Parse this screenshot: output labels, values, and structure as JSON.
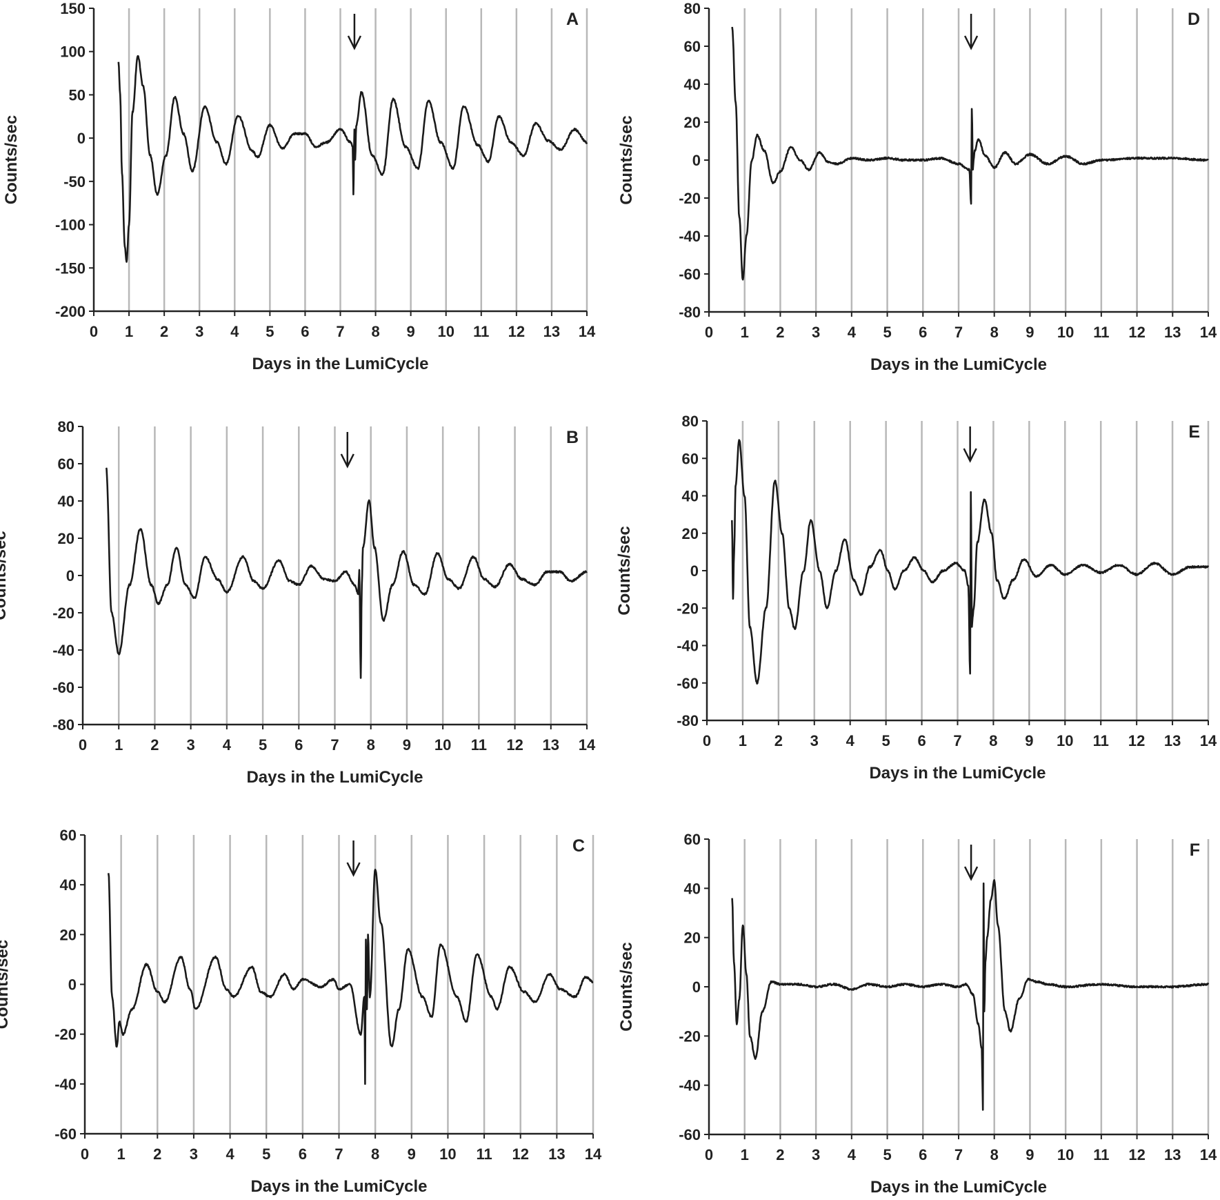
{
  "chart_data": [
    {
      "panel": "A",
      "type": "line",
      "xlabel": "Days in the LumiCycle",
      "ylabel": "Counts/sec",
      "xlim": [
        0,
        14
      ],
      "ylim": [
        -200,
        150
      ],
      "xticks": [
        "0",
        "1",
        "2",
        "3",
        "4",
        "5",
        "6",
        "7",
        "8",
        "9",
        "10",
        "11",
        "12",
        "13",
        "14"
      ],
      "yticks": [
        "-200",
        "-150",
        "-100",
        "-50",
        "0",
        "50",
        "100",
        "150"
      ],
      "vgrid_days": [
        1,
        2,
        3,
        4,
        5,
        6,
        7,
        8,
        9,
        10,
        11,
        12,
        13,
        14
      ],
      "arrow_day": 7.4,
      "series": [
        {
          "x": [
            0.7,
            0.75,
            0.8,
            0.88,
            0.93,
            1.0,
            1.1,
            1.25,
            1.4,
            1.6,
            1.8,
            2.05,
            2.3,
            2.55,
            2.8,
            3.15,
            3.5,
            3.75,
            4.1,
            4.5,
            4.65,
            5.0,
            5.35,
            5.7,
            6.0,
            6.3,
            6.6,
            7.0,
            7.3,
            7.35,
            7.37,
            7.4,
            7.42,
            7.45,
            7.6,
            7.9,
            8.2,
            8.5,
            8.85,
            9.2,
            9.5,
            9.85,
            10.2,
            10.5,
            10.9,
            11.2,
            11.5,
            11.85,
            12.2,
            12.55,
            12.9,
            13.25,
            13.65,
            14.0
          ],
          "y": [
            88,
            50,
            -40,
            -125,
            -143,
            -100,
            30,
            95,
            60,
            -20,
            -65,
            -20,
            47,
            5,
            -38,
            36,
            -5,
            -30,
            26,
            -15,
            -22,
            15,
            -12,
            5,
            5,
            -10,
            -5,
            10,
            -5,
            -10,
            -65,
            10,
            -25,
            15,
            53,
            -20,
            -42,
            45,
            -10,
            -35,
            43,
            -5,
            -35,
            37,
            -8,
            -27,
            25,
            -5,
            -20,
            17,
            -3,
            -13,
            10,
            -5
          ]
        }
      ]
    },
    {
      "panel": "B",
      "type": "line",
      "xlabel": "Days in the LumiCycle",
      "ylabel": "Counts/sec",
      "xlim": [
        0,
        14
      ],
      "ylim": [
        -80,
        80
      ],
      "xticks": [
        "0",
        "1",
        "2",
        "3",
        "4",
        "5",
        "6",
        "7",
        "8",
        "9",
        "10",
        "11",
        "12",
        "13",
        "14"
      ],
      "yticks": [
        "-80",
        "-60",
        "-40",
        "-20",
        "0",
        "20",
        "40",
        "60",
        "80"
      ],
      "vgrid_days": [
        1,
        2,
        3,
        4,
        5,
        6,
        7,
        8,
        9,
        10,
        11,
        12,
        13,
        14
      ],
      "arrow_day": 7.35,
      "series": [
        {
          "x": [
            0.65,
            0.8,
            1.0,
            1.3,
            1.6,
            1.9,
            2.1,
            2.35,
            2.6,
            2.85,
            3.1,
            3.4,
            3.75,
            4.0,
            4.45,
            4.75,
            5.0,
            5.45,
            5.75,
            6.0,
            6.35,
            6.7,
            7.0,
            7.3,
            7.55,
            7.65,
            7.68,
            7.72,
            7.75,
            7.78,
            7.95,
            8.1,
            8.35,
            8.6,
            8.9,
            9.2,
            9.5,
            9.85,
            10.15,
            10.45,
            10.85,
            11.15,
            11.45,
            11.85,
            12.2,
            12.55,
            12.9,
            13.25,
            13.55,
            14.0
          ],
          "y": [
            58,
            -20,
            -42,
            -5,
            25,
            -5,
            -15,
            -5,
            15,
            -5,
            -12,
            10,
            -2,
            -9,
            10,
            -3,
            -7,
            8,
            -3,
            -5,
            5,
            -2,
            -3,
            2,
            -5,
            -10,
            3,
            -55,
            -5,
            15,
            40,
            15,
            -24,
            -5,
            13,
            -5,
            -10,
            12,
            -2,
            -7,
            10,
            -2,
            -6,
            6,
            -2,
            -5,
            2,
            2,
            -3,
            2
          ]
        }
      ]
    },
    {
      "panel": "C",
      "type": "line",
      "xlabel": "Days in the LumiCycle",
      "ylabel": "Counts/sec",
      "xlim": [
        0,
        14
      ],
      "ylim": [
        -60,
        60
      ],
      "xticks": [
        "0",
        "1",
        "2",
        "3",
        "4",
        "5",
        "6",
        "7",
        "8",
        "9",
        "10",
        "11",
        "12",
        "13",
        "14"
      ],
      "yticks": [
        "-60",
        "-40",
        "-20",
        "0",
        "20",
        "40",
        "60"
      ],
      "vgrid_days": [
        1,
        2,
        3,
        4,
        5,
        6,
        7,
        8,
        9,
        10,
        11,
        12,
        13,
        14
      ],
      "arrow_day": 7.4,
      "series": [
        {
          "x": [
            0.65,
            0.75,
            0.88,
            0.95,
            1.05,
            1.3,
            1.7,
            2.0,
            2.2,
            2.65,
            2.9,
            3.05,
            3.6,
            3.9,
            4.1,
            4.6,
            4.85,
            5.1,
            5.5,
            5.75,
            6.0,
            6.5,
            6.85,
            7.0,
            7.3,
            7.6,
            7.7,
            7.72,
            7.74,
            7.77,
            7.8,
            7.85,
            8.0,
            8.15,
            8.45,
            8.65,
            8.9,
            9.3,
            9.55,
            9.8,
            10.25,
            10.5,
            10.8,
            11.2,
            11.35,
            11.7,
            12.1,
            12.4,
            12.8,
            13.1,
            13.5,
            13.8,
            14.0
          ],
          "y": [
            45,
            -5,
            -25,
            -15,
            -20,
            -10,
            8,
            -3,
            -7,
            11,
            -2,
            -10,
            11,
            -2,
            -5,
            7,
            -3,
            -5,
            4,
            -2,
            2,
            -1,
            2,
            -2,
            0,
            -20,
            -5,
            -40,
            18,
            -10,
            20,
            -5,
            46,
            25,
            -25,
            -10,
            14,
            -5,
            -13,
            16,
            -5,
            -15,
            12,
            -5,
            -10,
            7,
            -3,
            -7,
            4,
            -2,
            -5,
            3,
            1
          ]
        }
      ]
    },
    {
      "panel": "D",
      "type": "line",
      "xlabel": "Days in the LumiCycle",
      "ylabel": "Counts/sec",
      "xlim": [
        0,
        14
      ],
      "ylim": [
        -80,
        80
      ],
      "xticks": [
        "0",
        "1",
        "2",
        "3",
        "4",
        "5",
        "6",
        "7",
        "8",
        "9",
        "10",
        "11",
        "12",
        "13",
        "14"
      ],
      "yticks": [
        "-80",
        "-60",
        "-40",
        "-20",
        "0",
        "20",
        "40",
        "60",
        "80"
      ],
      "vgrid_days": [
        1,
        2,
        3,
        4,
        5,
        6,
        7,
        8,
        9,
        10,
        11,
        12,
        13,
        14
      ],
      "arrow_day": 7.35,
      "series": [
        {
          "x": [
            0.65,
            0.75,
            0.85,
            0.95,
            1.05,
            1.2,
            1.35,
            1.55,
            1.8,
            2.0,
            2.3,
            2.55,
            2.8,
            3.1,
            3.35,
            3.6,
            4.0,
            4.5,
            5.0,
            5.5,
            6.0,
            6.5,
            7.0,
            7.3,
            7.35,
            7.37,
            7.4,
            7.42,
            7.45,
            7.55,
            7.75,
            8.0,
            8.3,
            8.6,
            9.0,
            9.5,
            10.0,
            10.5,
            11.0,
            12.0,
            13.0,
            14.0
          ],
          "y": [
            70,
            30,
            -30,
            -63,
            -40,
            0,
            13,
            5,
            -12,
            -6,
            7,
            0,
            -5,
            4,
            -1,
            -2,
            1,
            0,
            1,
            0,
            0,
            1,
            -2,
            -5,
            -23,
            27,
            -5,
            0,
            5,
            11,
            2,
            -4,
            4,
            -2,
            3,
            -2,
            2,
            -2,
            0,
            1,
            1,
            0
          ]
        }
      ]
    },
    {
      "panel": "E",
      "type": "line",
      "xlabel": "Days in the LumiCycle",
      "ylabel": "Counts/sec",
      "xlim": [
        0,
        14
      ],
      "ylim": [
        -80,
        80
      ],
      "xticks": [
        "0",
        "1",
        "2",
        "3",
        "4",
        "5",
        "6",
        "7",
        "8",
        "9",
        "10",
        "11",
        "12",
        "13",
        "14"
      ],
      "yticks": [
        "-80",
        "-60",
        "-40",
        "-20",
        "0",
        "20",
        "40",
        "60",
        "80"
      ],
      "vgrid_days": [
        1,
        2,
        3,
        4,
        5,
        6,
        7,
        8,
        9,
        10,
        11,
        12,
        13,
        14
      ],
      "arrow_day": 7.35,
      "series": [
        {
          "x": [
            0.7,
            0.73,
            0.76,
            0.8,
            0.9,
            1.05,
            1.2,
            1.4,
            1.65,
            1.9,
            2.1,
            2.3,
            2.45,
            2.7,
            2.9,
            3.15,
            3.35,
            3.6,
            3.85,
            4.1,
            4.3,
            4.55,
            4.85,
            5.05,
            5.25,
            5.5,
            5.8,
            6.05,
            6.3,
            6.6,
            6.95,
            7.2,
            7.3,
            7.35,
            7.37,
            7.4,
            7.42,
            7.45,
            7.55,
            7.75,
            7.95,
            8.1,
            8.3,
            8.55,
            8.85,
            9.2,
            9.6,
            10.0,
            10.5,
            11.0,
            11.5,
            12.0,
            12.5,
            13.0,
            13.5,
            14.0
          ],
          "y": [
            27,
            -15,
            10,
            45,
            70,
            40,
            -30,
            -60,
            -20,
            48,
            20,
            -20,
            -31,
            0,
            27,
            0,
            -20,
            0,
            17,
            -5,
            -13,
            2,
            11,
            0,
            -10,
            0,
            7,
            0,
            -6,
            0,
            4,
            0,
            -8,
            -55,
            42,
            -30,
            -25,
            -20,
            15,
            38,
            20,
            -5,
            -15,
            -5,
            6,
            -3,
            3,
            -2,
            3,
            -1,
            3,
            -2,
            4,
            -2,
            2,
            2
          ]
        }
      ]
    },
    {
      "panel": "F",
      "type": "line",
      "xlabel": "Days in the LumiCycle",
      "ylabel": "Counts/sec",
      "xlim": [
        0,
        14
      ],
      "ylim": [
        -60,
        60
      ],
      "xticks": [
        "0",
        "1",
        "2",
        "3",
        "4",
        "5",
        "6",
        "7",
        "8",
        "9",
        "10",
        "11",
        "12",
        "13",
        "14"
      ],
      "yticks": [
        "-60",
        "-40",
        "-20",
        "0",
        "20",
        "40",
        "60"
      ],
      "vgrid_days": [
        1,
        2,
        3,
        4,
        5,
        6,
        7,
        8,
        9,
        10,
        11,
        12,
        13,
        14
      ],
      "arrow_day": 7.35,
      "series": [
        {
          "x": [
            0.65,
            0.7,
            0.78,
            0.85,
            0.95,
            1.05,
            1.15,
            1.3,
            1.5,
            1.75,
            2.0,
            2.5,
            3.0,
            3.5,
            4.0,
            4.5,
            5.0,
            5.5,
            6.0,
            6.5,
            7.0,
            7.2,
            7.4,
            7.55,
            7.65,
            7.68,
            7.7,
            7.72,
            7.75,
            7.8,
            7.9,
            8.0,
            8.1,
            8.3,
            8.45,
            8.7,
            8.95,
            9.2,
            9.5,
            10.0,
            11.0,
            12.0,
            13.0,
            14.0
          ],
          "y": [
            36,
            10,
            -15,
            -5,
            25,
            5,
            -20,
            -29,
            -10,
            2,
            1,
            1,
            0,
            1,
            -1,
            1,
            0,
            1,
            0,
            1,
            0,
            1,
            -3,
            -15,
            -25,
            -50,
            42,
            -10,
            10,
            20,
            35,
            43,
            25,
            -10,
            -18,
            -5,
            3,
            2,
            1,
            0,
            1,
            0,
            0,
            1
          ]
        }
      ]
    }
  ]
}
